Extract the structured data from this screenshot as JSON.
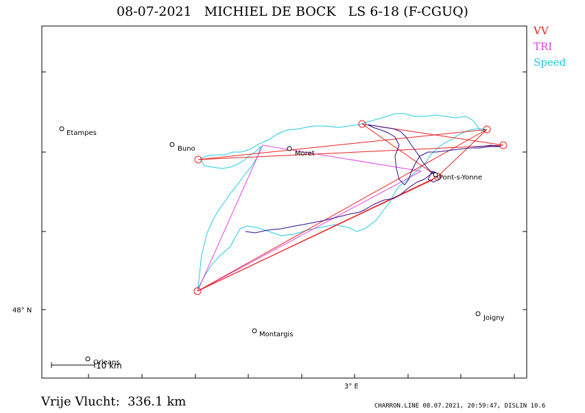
{
  "title": "08-07-2021   MICHIEL DE BOCK   LS 6-18 (F-CGUQ)",
  "legend": [
    {
      "label": "VV",
      "color": "#e8201e"
    },
    {
      "label": "TRI",
      "color": "#e040e0"
    },
    {
      "label": "Speed",
      "color": "#1ec8e8"
    }
  ],
  "footer": {
    "distance": "Vrije Vlucht:  336.1 km",
    "info": "CHARRON.LINE 08.07.2021, 20:59:47, DISLIN 10.6"
  },
  "axes": {
    "lat_label": "48° N",
    "lon_label": "3° E"
  },
  "scale": {
    "label": "10 km"
  },
  "towns": [
    "Etampes",
    "Buno",
    "Moret",
    "Pont-s-Yonne",
    "Montargis",
    "Joigny",
    "Orleans"
  ],
  "track_color": "#2a0a8c"
}
